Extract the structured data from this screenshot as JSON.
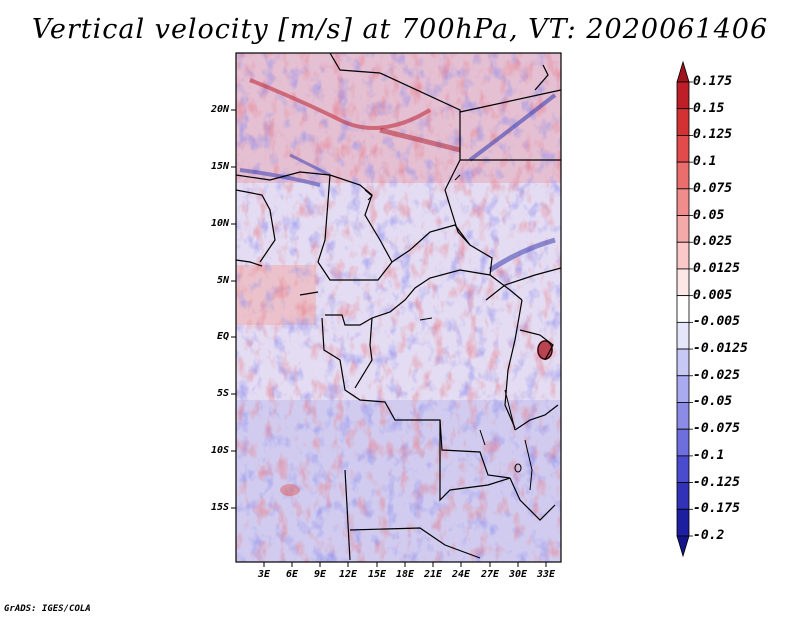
{
  "title": "Vertical velocity [m/s] at 700hPa, VT: 2020061406",
  "credit": "GrADS: IGES/COLA",
  "map": {
    "lat_labels": [
      "20N",
      "15N",
      "10N",
      "5N",
      "EQ",
      "5S",
      "10S",
      "15S"
    ],
    "lon_labels": [
      "3E",
      "6E",
      "9E",
      "12E",
      "15E",
      "18E",
      "21E",
      "24E",
      "27E",
      "30E",
      "33E"
    ]
  },
  "colorbar": {
    "labels": [
      "0.175",
      "0.15",
      "0.125",
      "0.1",
      "0.075",
      "0.05",
      "0.025",
      "0.0125",
      "0.005",
      "-0.005",
      "-0.0125",
      "-0.025",
      "-0.05",
      "-0.075",
      "-0.1",
      "-0.125",
      "-0.175",
      "-0.2"
    ],
    "colors": [
      "#a0141e",
      "#be1e28",
      "#d23232",
      "#e14b4b",
      "#eb6e6e",
      "#f08c8c",
      "#f5aaaa",
      "#fac8c8",
      "#fde6e6",
      "#ffffff",
      "#e6e6fa",
      "#c8c8f5",
      "#aaaaf0",
      "#8c8ce6",
      "#6e6edc",
      "#4b4bcd",
      "#3232b9",
      "#1e1ea0",
      "#14148c"
    ]
  }
}
